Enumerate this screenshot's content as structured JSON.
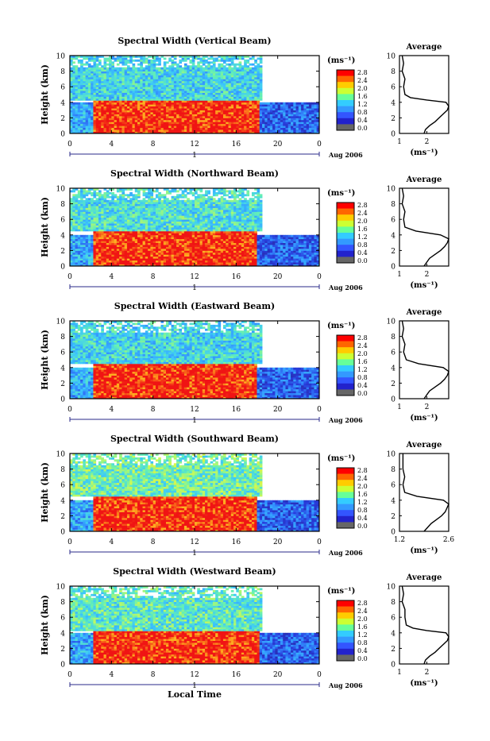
{
  "common": {
    "ylabel": "Height (km)",
    "height_ticks": [
      "0",
      "2",
      "4",
      "6",
      "8",
      "10"
    ],
    "time_ticks": [
      "0",
      "4",
      "8",
      "12",
      "16",
      "20",
      "0"
    ],
    "day_label": "1",
    "date_label": "Aug 2006",
    "unit_label": "(ms⁻¹)",
    "colorbar_ticks": [
      "2.8",
      "2.4",
      "2.0",
      "1.6",
      "1.2",
      "0.8",
      "0.4",
      "0.0"
    ],
    "colorbar_colors": [
      "#ff0000",
      "#ff6600",
      "#ffcc00",
      "#ccff33",
      "#66ff99",
      "#33ccff",
      "#3399ff",
      "#3355ff",
      "#2222cc",
      "#666666"
    ],
    "avg_title": "Average",
    "avg_unit": "(ms⁻¹)",
    "xlabel": "Local Time"
  },
  "chart_data": [
    {
      "type": "heatmap",
      "title": "Spectral Width (Vertical Beam)",
      "xlim": [
        0,
        24
      ],
      "ylim": [
        0,
        10
      ],
      "layers": [
        {
          "from_h": 0,
          "to_h": 4.2,
          "value": 2.8,
          "t0": 2.2,
          "t1": 18.2
        },
        {
          "from_h": 4.2,
          "to_h": 10,
          "value": 1.3,
          "t0": 0,
          "t1": 18.5
        },
        {
          "from_h": 0,
          "to_h": 4.0,
          "value": 1.0,
          "t0": 0,
          "t1": 2.2
        },
        {
          "from_h": 0,
          "to_h": 4.0,
          "value": 0.6,
          "t0": 18.2,
          "t1": 24
        }
      ],
      "average_profile": {
        "xlim": [
          1,
          2.8
        ],
        "x_ticks": [
          "1",
          "2"
        ],
        "height": [
          0,
          0.5,
          1,
          1.5,
          2,
          2.5,
          3,
          3.5,
          4,
          4.3,
          4.6,
          5,
          6,
          7,
          8,
          9,
          10
        ],
        "value": [
          1.9,
          1.95,
          2.1,
          2.3,
          2.45,
          2.6,
          2.75,
          2.8,
          2.7,
          2.0,
          1.4,
          1.2,
          1.15,
          1.2,
          1.1,
          1.15,
          1.1
        ]
      }
    },
    {
      "type": "heatmap",
      "title": "Spectral Width (Northward Beam)",
      "xlim": [
        0,
        24
      ],
      "ylim": [
        0,
        10
      ],
      "layers": [
        {
          "from_h": 0,
          "to_h": 4.5,
          "value": 2.8,
          "t0": 2.2,
          "t1": 18.0
        },
        {
          "from_h": 4.5,
          "to_h": 10,
          "value": 1.4,
          "t0": 0,
          "t1": 18.5
        },
        {
          "from_h": 0,
          "to_h": 4.0,
          "value": 1.0,
          "t0": 0,
          "t1": 2.2
        },
        {
          "from_h": 0,
          "to_h": 4.0,
          "value": 0.6,
          "t0": 18.0,
          "t1": 24
        }
      ],
      "average_profile": {
        "xlim": [
          1,
          2.8
        ],
        "x_ticks": [
          "1",
          "2"
        ],
        "height": [
          0,
          0.5,
          1,
          1.5,
          2,
          2.5,
          3,
          3.5,
          4,
          4.5,
          5,
          6,
          7,
          8,
          9,
          10
        ],
        "value": [
          1.9,
          2.0,
          2.1,
          2.3,
          2.5,
          2.65,
          2.75,
          2.8,
          2.5,
          1.6,
          1.2,
          1.15,
          1.2,
          1.1,
          1.15,
          1.1
        ]
      }
    },
    {
      "type": "heatmap",
      "title": "Spectral Width (Eastward Beam)",
      "xlim": [
        0,
        24
      ],
      "ylim": [
        0,
        10
      ],
      "layers": [
        {
          "from_h": 0,
          "to_h": 4.5,
          "value": 2.8,
          "t0": 2.2,
          "t1": 18.0
        },
        {
          "from_h": 4.5,
          "to_h": 10,
          "value": 1.3,
          "t0": 0,
          "t1": 18.5
        },
        {
          "from_h": 0,
          "to_h": 4.0,
          "value": 1.0,
          "t0": 0,
          "t1": 2.2
        },
        {
          "from_h": 0,
          "to_h": 4.0,
          "value": 0.6,
          "t0": 18.0,
          "t1": 24
        }
      ],
      "average_profile": {
        "xlim": [
          1,
          2.8
        ],
        "x_ticks": [
          "1",
          "2"
        ],
        "height": [
          0,
          0.5,
          1,
          1.5,
          2,
          2.5,
          3,
          3.5,
          4,
          4.5,
          5,
          6,
          7,
          8,
          9,
          10
        ],
        "value": [
          1.9,
          2.0,
          2.1,
          2.3,
          2.5,
          2.65,
          2.75,
          2.8,
          2.6,
          1.7,
          1.25,
          1.15,
          1.2,
          1.1,
          1.15,
          1.1
        ]
      }
    },
    {
      "type": "heatmap",
      "title": "Spectral Width (Southward Beam)",
      "xlim": [
        0,
        24
      ],
      "ylim": [
        0,
        10
      ],
      "layers": [
        {
          "from_h": 0,
          "to_h": 4.5,
          "value": 2.8,
          "t0": 2.2,
          "t1": 18.0
        },
        {
          "from_h": 4.5,
          "to_h": 10,
          "value": 1.6,
          "t0": 0,
          "t1": 18.5
        },
        {
          "from_h": 0,
          "to_h": 4.0,
          "value": 1.0,
          "t0": 0,
          "t1": 2.2
        },
        {
          "from_h": 0,
          "to_h": 4.0,
          "value": 0.6,
          "t0": 18.0,
          "t1": 24
        }
      ],
      "average_profile": {
        "xlim": [
          1.2,
          2.6
        ],
        "x_ticks": [
          "1.2",
          "2.6"
        ],
        "height": [
          0,
          0.5,
          1,
          1.5,
          2,
          2.5,
          3,
          3.5,
          4,
          4.5,
          5,
          6,
          7,
          8,
          9,
          10
        ],
        "value": [
          1.9,
          2.0,
          2.1,
          2.25,
          2.4,
          2.5,
          2.55,
          2.6,
          2.45,
          1.7,
          1.35,
          1.3,
          1.35,
          1.3,
          1.3,
          1.3
        ]
      }
    },
    {
      "type": "heatmap",
      "title": "Spectral Width (Westward Beam)",
      "xlim": [
        0,
        24
      ],
      "ylim": [
        0,
        10
      ],
      "layers": [
        {
          "from_h": 0,
          "to_h": 4.3,
          "value": 2.8,
          "t0": 2.2,
          "t1": 18.2
        },
        {
          "from_h": 4.3,
          "to_h": 10,
          "value": 1.5,
          "t0": 0,
          "t1": 18.5
        },
        {
          "from_h": 0,
          "to_h": 4.0,
          "value": 1.0,
          "t0": 0,
          "t1": 2.2
        },
        {
          "from_h": 0,
          "to_h": 4.0,
          "value": 0.6,
          "t0": 18.2,
          "t1": 24
        }
      ],
      "average_profile": {
        "xlim": [
          1,
          2.8
        ],
        "x_ticks": [
          "1",
          "2"
        ],
        "height": [
          0,
          0.5,
          1,
          1.5,
          2,
          2.5,
          3,
          3.5,
          4,
          4.3,
          4.6,
          5,
          6,
          7,
          8,
          9,
          10
        ],
        "value": [
          1.9,
          1.95,
          2.1,
          2.3,
          2.45,
          2.6,
          2.75,
          2.8,
          2.7,
          2.0,
          1.5,
          1.25,
          1.2,
          1.2,
          1.1,
          1.15,
          1.1
        ]
      }
    }
  ]
}
